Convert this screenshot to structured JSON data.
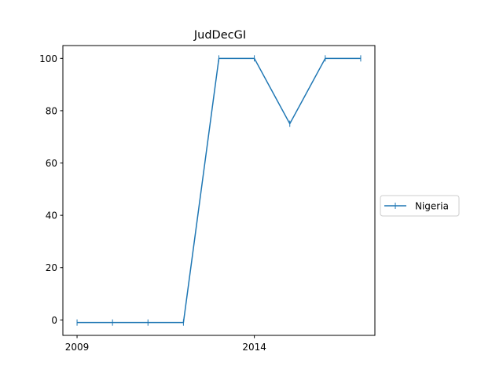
{
  "chart_data": {
    "type": "line",
    "title": "JudDecGI",
    "xlabel": "",
    "ylabel": "",
    "x": [
      2009,
      2010,
      2011,
      2012,
      2013,
      2014,
      2015,
      2016,
      2017
    ],
    "series": [
      {
        "name": "Nigeria",
        "color": "#1f77b4",
        "marker": "vertical-tick",
        "values": [
          -1,
          -1,
          -1,
          -1,
          100,
          100,
          75,
          100,
          100
        ]
      }
    ],
    "xlim": [
      2008.6,
      2017.4
    ],
    "ylim": [
      -5.9,
      104.9
    ],
    "x_ticks": [
      2009,
      2014
    ],
    "y_ticks": [
      0,
      20,
      40,
      60,
      80,
      100
    ],
    "grid": false,
    "legend_position": "right, outside plot"
  }
}
